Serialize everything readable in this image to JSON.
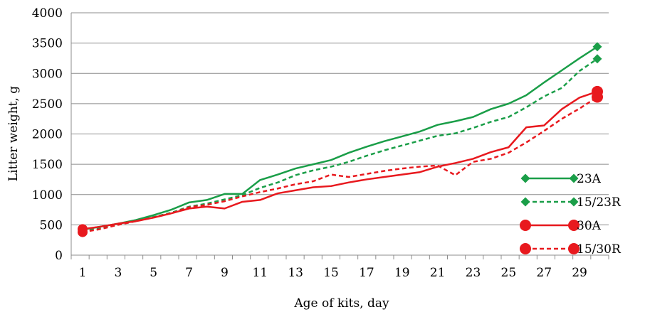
{
  "chart_data": {
    "type": "line",
    "title": "",
    "xlabel": "Age of kits, day",
    "ylabel": "Litter weight, g",
    "xlim": [
      1,
      30
    ],
    "ylim": [
      0,
      4000
    ],
    "ytick_step": 500,
    "x_tick_labels": [
      "1",
      "3",
      "5",
      "7",
      "9",
      "11",
      "13",
      "15",
      "17",
      "19",
      "21",
      "23",
      "25",
      "27",
      "29"
    ],
    "grid": "horizontal",
    "legend_position": "bottom-right",
    "x": [
      1,
      2,
      3,
      4,
      5,
      6,
      7,
      8,
      9,
      10,
      11,
      12,
      13,
      14,
      15,
      16,
      17,
      18,
      19,
      20,
      21,
      22,
      23,
      24,
      25,
      26,
      27,
      28,
      29,
      30
    ],
    "series": [
      {
        "name": "23A",
        "color": "#1a9e48",
        "dash": "solid",
        "marker": "diamond",
        "values": [
          420,
          470,
          520,
          580,
          660,
          750,
          870,
          910,
          1010,
          1010,
          1240,
          1330,
          1430,
          1500,
          1570,
          1690,
          1790,
          1880,
          1960,
          2040,
          2150,
          2210,
          2280,
          2410,
          2500,
          2640,
          2850,
          3050,
          3250,
          3440
        ]
      },
      {
        "name": "15/23R",
        "color": "#1a9e48",
        "dash": "dashed",
        "marker": "diamond",
        "values": [
          400,
          450,
          510,
          560,
          630,
          700,
          800,
          850,
          920,
          990,
          1110,
          1200,
          1320,
          1400,
          1460,
          1540,
          1640,
          1730,
          1810,
          1890,
          1970,
          2010,
          2100,
          2200,
          2280,
          2440,
          2620,
          2760,
          3040,
          3240
        ]
      },
      {
        "name": "30A",
        "color": "#e8191e",
        "dash": "solid",
        "marker": "circle",
        "values": [
          430,
          470,
          520,
          560,
          620,
          690,
          770,
          800,
          770,
          880,
          910,
          1020,
          1070,
          1120,
          1140,
          1200,
          1250,
          1290,
          1330,
          1370,
          1460,
          1520,
          1590,
          1700,
          1780,
          2110,
          2140,
          2410,
          2600,
          2700
        ]
      },
      {
        "name": "15/30R",
        "color": "#e8191e",
        "dash": "dashed",
        "marker": "circle",
        "values": [
          380,
          430,
          500,
          560,
          620,
          690,
          790,
          830,
          890,
          970,
          1040,
          1100,
          1170,
          1220,
          1330,
          1290,
          1340,
          1390,
          1430,
          1460,
          1480,
          1320,
          1540,
          1590,
          1690,
          1860,
          2050,
          2250,
          2420,
          2610
        ]
      }
    ]
  }
}
